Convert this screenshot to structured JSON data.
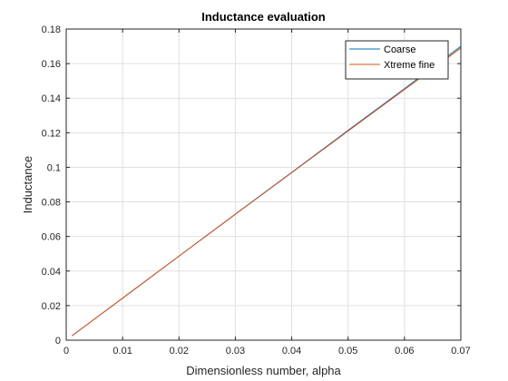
{
  "chart_data": {
    "type": "line",
    "title": "Inductance evaluation",
    "xlabel": "Dimensionless number, alpha",
    "ylabel": "Inductance",
    "xlim": [
      0,
      0.07
    ],
    "ylim": [
      0,
      0.18
    ],
    "xticks": [
      0,
      0.01,
      0.02,
      0.03,
      0.04,
      0.05,
      0.06,
      0.07
    ],
    "xtick_labels": [
      "0",
      "0.01",
      "0.02",
      "0.03",
      "0.04",
      "0.05",
      "0.06",
      "0.07"
    ],
    "yticks": [
      0,
      0.02,
      0.04,
      0.06,
      0.08,
      0.1,
      0.12,
      0.14,
      0.16,
      0.18
    ],
    "ytick_labels": [
      "0",
      "0.02",
      "0.04",
      "0.06",
      "0.08",
      "0.1",
      "0.12",
      "0.14",
      "0.16",
      "0.18"
    ],
    "grid": true,
    "legend_position": "top-right",
    "series": [
      {
        "name": "Coarse",
        "color": "#0072BD",
        "x": [
          0.001,
          0.01,
          0.02,
          0.03,
          0.04,
          0.05,
          0.06,
          0.07
        ],
        "y": [
          0.0025,
          0.0243,
          0.0486,
          0.0729,
          0.0971,
          0.1214,
          0.1455,
          0.17
        ]
      },
      {
        "name": "Xtreme fine",
        "color": "#D95319",
        "x": [
          0.001,
          0.01,
          0.02,
          0.03,
          0.04,
          0.05,
          0.06,
          0.07
        ],
        "y": [
          0.0025,
          0.0243,
          0.0486,
          0.0728,
          0.0969,
          0.121,
          0.145,
          0.169
        ]
      }
    ]
  }
}
